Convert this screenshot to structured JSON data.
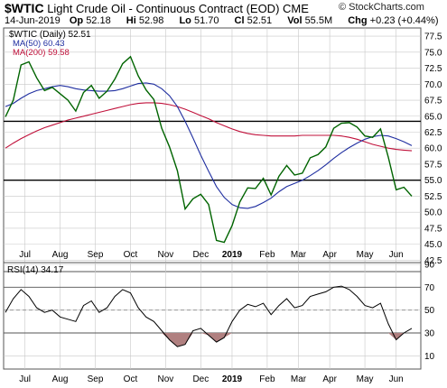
{
  "header": {
    "ticker": "$WTIC",
    "name": "Light Crude Oil - Continuous Contract (EOD)",
    "exchange": "CME",
    "brand": "© StockCharts.com",
    "date": "14-Jun-2019",
    "stats": {
      "open_label": "Op",
      "open": "52.18",
      "high_label": "Hi",
      "high": "52.98",
      "low_label": "Lo",
      "low": "51.70",
      "close_label": "Cl",
      "close": "52.51",
      "volume_label": "Vol",
      "volume": "55.5M",
      "change_label": "Chg",
      "change": "+0.23 (+0.44%)"
    }
  },
  "legend": {
    "main": "$WTIC (Daily) 52.51",
    "ma50": "MA(50) 60.43",
    "ma200": "MA(200) 59.58",
    "rsi": "RSI(14) 34.17"
  },
  "colors": {
    "price": "#006400",
    "ma50": "#1f2ea0",
    "ma200": "#c0103a",
    "rsi_line": "#000000",
    "rsi_fill": "#b08080",
    "grid": "#c8c8c8",
    "level_line": "#000000"
  },
  "x_labels": [
    "Jul",
    "Aug",
    "Sep",
    "Oct",
    "Nov",
    "Dec",
    "2019",
    "Feb",
    "Mar",
    "Apr",
    "May",
    "Jun"
  ],
  "x_bold": "2019",
  "chart_data": [
    {
      "type": "line",
      "title": "$WTIC Light Crude Oil - Continuous Contract (EOD)",
      "ylim": [
        41,
        78.5
      ],
      "yticks": [
        42.5,
        45.0,
        47.5,
        50.0,
        52.5,
        55.0,
        57.5,
        60.0,
        62.5,
        65.0,
        67.5,
        70.0,
        72.5,
        75.0,
        77.5
      ],
      "grid": true,
      "horizontal_lines": [
        64.2,
        55.0
      ],
      "x": [
        "2018-06-15",
        "2018-06-22",
        "2018-06-29",
        "2018-07-06",
        "2018-07-13",
        "2018-07-20",
        "2018-07-27",
        "2018-08-03",
        "2018-08-10",
        "2018-08-17",
        "2018-08-24",
        "2018-08-31",
        "2018-09-07",
        "2018-09-14",
        "2018-09-21",
        "2018-09-28",
        "2018-10-05",
        "2018-10-12",
        "2018-10-19",
        "2018-10-26",
        "2018-11-02",
        "2018-11-09",
        "2018-11-16",
        "2018-11-23",
        "2018-11-30",
        "2018-12-07",
        "2018-12-14",
        "2018-12-21",
        "2018-12-28",
        "2019-01-04",
        "2019-01-11",
        "2019-01-18",
        "2019-01-25",
        "2019-02-01",
        "2019-02-08",
        "2019-02-15",
        "2019-02-22",
        "2019-03-01",
        "2019-03-08",
        "2019-03-15",
        "2019-03-22",
        "2019-03-29",
        "2019-04-05",
        "2019-04-12",
        "2019-04-19",
        "2019-04-26",
        "2019-05-03",
        "2019-05-10",
        "2019-05-17",
        "2019-05-24",
        "2019-05-31",
        "2019-06-07",
        "2019-06-14"
      ],
      "series": [
        {
          "name": "$WTIC (Daily)",
          "values": [
            64.9,
            67.5,
            73.0,
            73.5,
            71.0,
            69.0,
            69.5,
            68.5,
            67.5,
            65.8,
            68.7,
            69.8,
            67.8,
            68.9,
            70.8,
            73.2,
            74.3,
            71.3,
            69.1,
            67.6,
            63.1,
            60.2,
            56.5,
            50.5,
            52.1,
            52.8,
            51.2,
            45.6,
            45.3,
            47.9,
            51.6,
            53.8,
            53.7,
            55.3,
            52.7,
            55.6,
            57.3,
            55.8,
            56.1,
            58.5,
            59.0,
            60.2,
            63.1,
            63.9,
            64.0,
            63.3,
            61.9,
            61.7,
            63.0,
            58.6,
            53.5,
            53.9,
            52.5
          ]
        },
        {
          "name": "MA(50)",
          "values": [
            66.5,
            67.0,
            67.8,
            68.5,
            69.0,
            69.3,
            69.6,
            69.8,
            69.6,
            69.3,
            69.1,
            69.0,
            68.9,
            68.9,
            69.0,
            69.3,
            69.7,
            70.1,
            70.2,
            70.0,
            69.3,
            68.2,
            66.5,
            64.2,
            61.6,
            58.9,
            56.4,
            54.0,
            52.3,
            51.2,
            50.7,
            50.6,
            50.9,
            51.5,
            52.2,
            53.2,
            54.0,
            54.5,
            55.0,
            55.7,
            56.5,
            57.4,
            58.4,
            59.3,
            60.1,
            60.8,
            61.4,
            61.8,
            62.0,
            61.9,
            61.5,
            61.0,
            60.4
          ]
        },
        {
          "name": "MA(200)",
          "values": [
            60.0,
            60.8,
            61.5,
            62.1,
            62.7,
            63.2,
            63.6,
            64.0,
            64.4,
            64.7,
            65.0,
            65.3,
            65.6,
            65.9,
            66.2,
            66.5,
            66.8,
            67.0,
            67.1,
            67.1,
            67.0,
            66.8,
            66.5,
            66.1,
            65.6,
            65.1,
            64.6,
            64.0,
            63.5,
            63.0,
            62.6,
            62.3,
            62.1,
            62.0,
            61.9,
            61.9,
            61.9,
            61.9,
            62.0,
            62.0,
            62.0,
            62.0,
            62.0,
            61.9,
            61.7,
            61.4,
            61.0,
            60.6,
            60.3,
            60.0,
            59.8,
            59.7,
            59.6
          ]
        }
      ]
    },
    {
      "type": "line",
      "title": "RSI(14)",
      "ylim": [
        0,
        90
      ],
      "yticks": [
        10,
        30,
        50,
        70,
        90
      ],
      "grid": true,
      "horizontal_lines": [
        30,
        50,
        70
      ],
      "x": [
        "2018-06-15",
        "2018-06-22",
        "2018-06-29",
        "2018-07-06",
        "2018-07-13",
        "2018-07-20",
        "2018-07-27",
        "2018-08-03",
        "2018-08-10",
        "2018-08-17",
        "2018-08-24",
        "2018-08-31",
        "2018-09-07",
        "2018-09-14",
        "2018-09-21",
        "2018-09-28",
        "2018-10-05",
        "2018-10-12",
        "2018-10-19",
        "2018-10-26",
        "2018-11-02",
        "2018-11-09",
        "2018-11-16",
        "2018-11-23",
        "2018-11-30",
        "2018-12-07",
        "2018-12-14",
        "2018-12-21",
        "2018-12-28",
        "2019-01-04",
        "2019-01-11",
        "2019-01-18",
        "2019-01-25",
        "2019-02-01",
        "2019-02-08",
        "2019-02-15",
        "2019-02-22",
        "2019-03-01",
        "2019-03-08",
        "2019-03-15",
        "2019-03-22",
        "2019-03-29",
        "2019-04-05",
        "2019-04-12",
        "2019-04-19",
        "2019-04-26",
        "2019-05-03",
        "2019-05-10",
        "2019-05-17",
        "2019-05-24",
        "2019-05-31",
        "2019-06-07",
        "2019-06-14"
      ],
      "series": [
        {
          "name": "RSI(14)",
          "values": [
            48,
            60,
            68,
            62,
            52,
            48,
            50,
            44,
            42,
            40,
            54,
            58,
            48,
            52,
            62,
            68,
            65,
            52,
            44,
            40,
            32,
            24,
            18,
            20,
            32,
            34,
            28,
            22,
            26,
            40,
            50,
            55,
            53,
            56,
            46,
            54,
            60,
            52,
            54,
            62,
            64,
            66,
            70,
            71,
            68,
            62,
            54,
            52,
            56,
            38,
            24,
            30,
            34
          ]
        }
      ]
    }
  ]
}
